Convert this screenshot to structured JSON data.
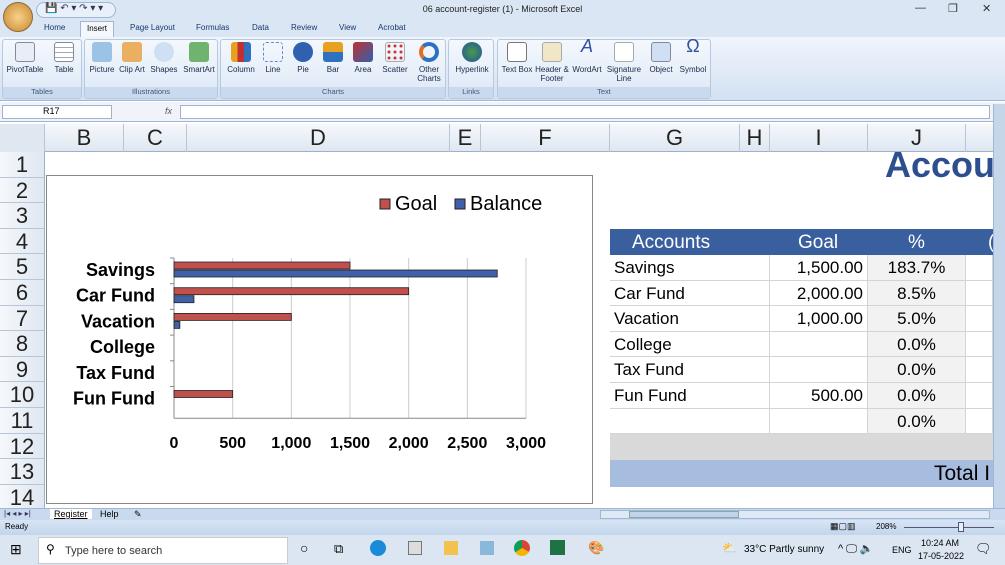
{
  "window": {
    "title": "06 account-register (1) - Microsoft Excel"
  },
  "ribbon": {
    "tabs": [
      "Home",
      "Insert",
      "Page Layout",
      "Formulas",
      "Data",
      "Review",
      "View",
      "Acrobat"
    ],
    "active_tab": "Insert",
    "groups": [
      {
        "label": "Tables",
        "items": [
          "PivotTable",
          "Table"
        ]
      },
      {
        "label": "Illustrations",
        "items": [
          "Picture",
          "Clip Art",
          "Shapes",
          "SmartArt"
        ]
      },
      {
        "label": "Charts",
        "items": [
          "Column",
          "Line",
          "Pie",
          "Bar",
          "Area",
          "Scatter",
          "Other Charts"
        ]
      },
      {
        "label": "Links",
        "items": [
          "Hyperlink"
        ]
      },
      {
        "label": "Text",
        "items": [
          "Text Box",
          "Header & Footer",
          "WordArt",
          "Signature Line",
          "Object",
          "Symbol"
        ]
      }
    ]
  },
  "formula_bar": {
    "name_box": "R17",
    "fx": "fx",
    "value": ""
  },
  "columns": [
    "B",
    "C",
    "D",
    "E",
    "F",
    "G",
    "H",
    "I",
    "J"
  ],
  "rows": [
    "1",
    "2",
    "3",
    "4",
    "5",
    "6",
    "7",
    "8",
    "9",
    "10",
    "11",
    "12",
    "13",
    "14"
  ],
  "sheet": {
    "heading": "Accou",
    "table_headers": [
      "Accounts",
      "Goal",
      "%",
      "("
    ],
    "table_rows": [
      {
        "account": "Savings",
        "goal": "1,500.00",
        "pct": "183.7%"
      },
      {
        "account": "Car Fund",
        "goal": "2,000.00",
        "pct": "8.5%"
      },
      {
        "account": "Vacation",
        "goal": "1,000.00",
        "pct": "5.0%"
      },
      {
        "account": "College",
        "goal": "",
        "pct": "0.0%"
      },
      {
        "account": "Tax Fund",
        "goal": "",
        "pct": "0.0%"
      },
      {
        "account": "Fun Fund",
        "goal": "500.00",
        "pct": "0.0%"
      },
      {
        "account": "",
        "goal": "",
        "pct": "0.0%"
      }
    ],
    "total_label": "Total I",
    "header_color": "#3a5f9f",
    "total_color": "#a7bde0"
  },
  "chart_data": {
    "type": "bar",
    "orientation": "horizontal",
    "categories": [
      "Savings",
      "Car Fund",
      "Vacation",
      "College",
      "Tax Fund",
      "Fun Fund"
    ],
    "series": [
      {
        "name": "Goal",
        "color": "#c0504d",
        "values": [
          1500,
          2000,
          1000,
          0,
          0,
          500
        ]
      },
      {
        "name": "Balance",
        "color": "#4060a8",
        "values": [
          2755,
          170,
          50,
          0,
          0,
          0
        ]
      }
    ],
    "xlim": [
      0,
      3000
    ],
    "x_ticks": [
      "0",
      "500",
      "1,000",
      "1,500",
      "2,000",
      "2,500",
      "3,000"
    ],
    "grid": true,
    "legend": "top-right"
  },
  "sheet_tabs": [
    "Register",
    "Help"
  ],
  "status": {
    "ready": "Ready",
    "zoom": "208%"
  },
  "taskbar": {
    "search_placeholder": "Type here to search",
    "weather": "33°C  Partly sunny",
    "lang": "ENG",
    "time": "10:24 AM",
    "date": "17-05-2022"
  }
}
